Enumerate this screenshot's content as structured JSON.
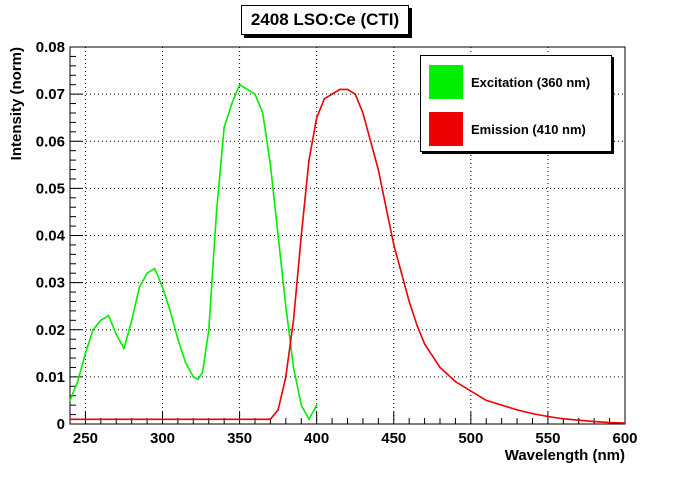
{
  "chart_data": {
    "type": "line",
    "title": "2408 LSO:Ce (CTI)",
    "xlabel": "Wavelength (nm)",
    "ylabel": "Intensity (norm)",
    "xlim": [
      240,
      600
    ],
    "ylim": [
      0,
      0.08
    ],
    "xticks": [
      250,
      300,
      350,
      400,
      450,
      500,
      550,
      600
    ],
    "yticks": [
      0,
      0.01,
      0.02,
      0.03,
      0.04,
      0.05,
      0.06,
      0.07,
      0.08
    ],
    "xtick_labels": [
      "250",
      "300",
      "350",
      "400",
      "450",
      "500",
      "550",
      "600"
    ],
    "ytick_labels": [
      "0",
      "0.01",
      "0.02",
      "0.03",
      "0.04",
      "0.05",
      "0.06",
      "0.07",
      "0.08"
    ],
    "grid": true,
    "legend_position": "top-right",
    "series": [
      {
        "name": "Excitation (360 nm)",
        "color": "#00ee00",
        "x": [
          240,
          245,
          250,
          255,
          260,
          265,
          270,
          275,
          280,
          285,
          290,
          295,
          300,
          305,
          310,
          315,
          320,
          323,
          326,
          330,
          335,
          340,
          345,
          350,
          355,
          360,
          365,
          370,
          375,
          380,
          385,
          390,
          395,
          400
        ],
        "y": [
          0.005,
          0.009,
          0.015,
          0.02,
          0.022,
          0.023,
          0.019,
          0.016,
          0.022,
          0.029,
          0.032,
          0.033,
          0.029,
          0.024,
          0.018,
          0.013,
          0.01,
          0.0095,
          0.011,
          0.02,
          0.045,
          0.063,
          0.068,
          0.072,
          0.071,
          0.07,
          0.066,
          0.055,
          0.04,
          0.025,
          0.012,
          0.004,
          0.001,
          0.004
        ]
      },
      {
        "name": "Emission (410 nm)",
        "color": "#ee0000",
        "x": [
          240,
          300,
          350,
          370,
          375,
          380,
          385,
          390,
          395,
          400,
          405,
          410,
          415,
          420,
          425,
          430,
          435,
          440,
          445,
          450,
          455,
          460,
          465,
          470,
          480,
          490,
          500,
          510,
          520,
          530,
          540,
          550,
          560,
          570,
          580,
          590,
          600
        ],
        "y": [
          0.001,
          0.001,
          0.001,
          0.001,
          0.003,
          0.01,
          0.022,
          0.04,
          0.056,
          0.065,
          0.069,
          0.07,
          0.071,
          0.071,
          0.07,
          0.066,
          0.06,
          0.054,
          0.046,
          0.038,
          0.032,
          0.026,
          0.021,
          0.017,
          0.012,
          0.009,
          0.007,
          0.005,
          0.004,
          0.003,
          0.0022,
          0.0016,
          0.0011,
          0.0008,
          0.0005,
          0.0003,
          0.0002
        ]
      }
    ]
  }
}
